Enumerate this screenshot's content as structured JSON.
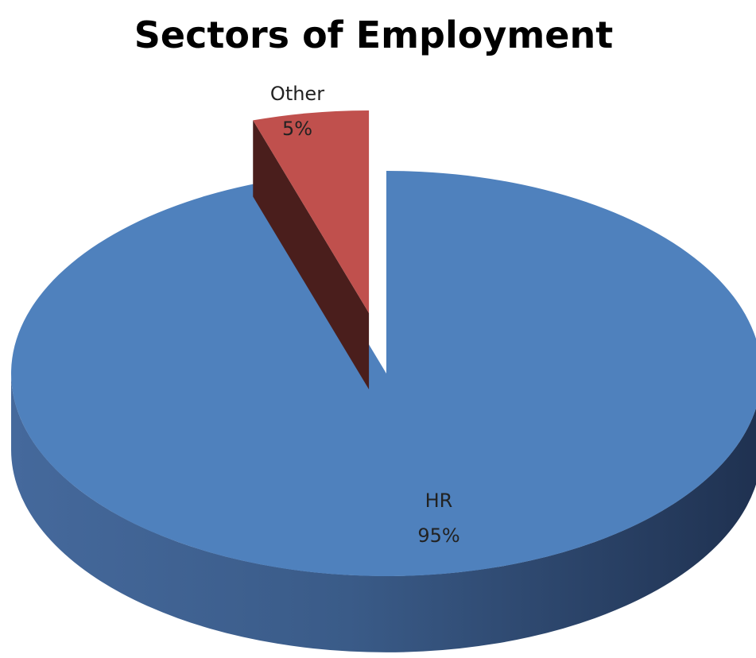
{
  "chart_data": {
    "type": "pie",
    "title": "Sectors of Employment",
    "three_d": true,
    "exploded": [
      "Other"
    ],
    "slices": [
      {
        "name": "HR",
        "value": 95,
        "label_name": "HR",
        "label_pct": "95%",
        "color": "#4F81BD"
      },
      {
        "name": "Other",
        "value": 5,
        "label_name": "Other",
        "label_pct": "5%",
        "color": "#C0504D"
      }
    ]
  }
}
